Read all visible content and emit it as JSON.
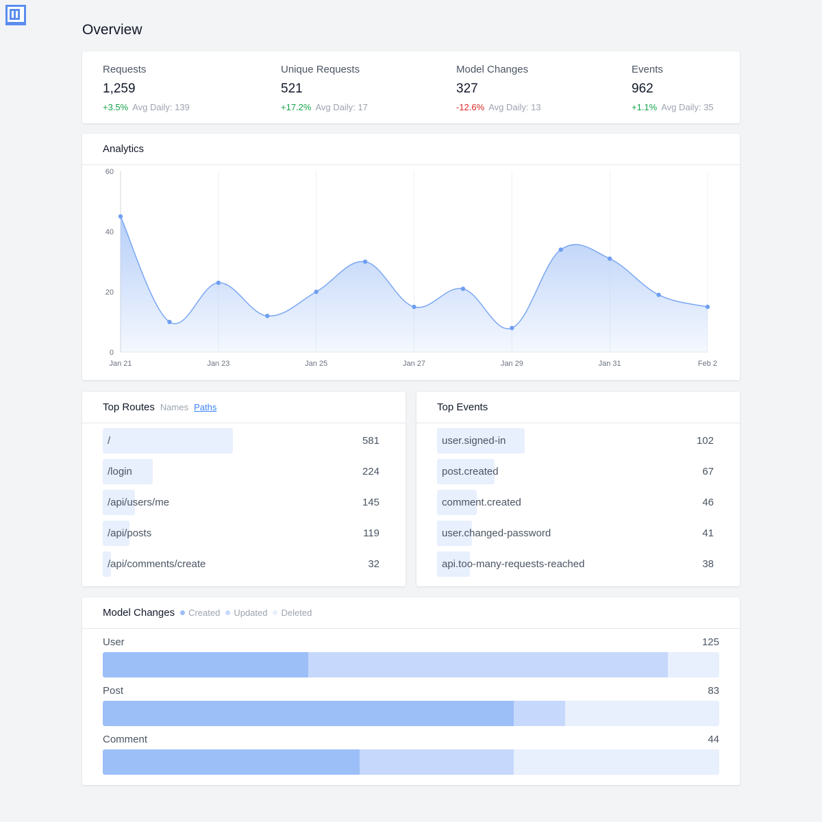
{
  "page": {
    "title": "Overview",
    "logo_icon": "lm-logo-icon"
  },
  "colors": {
    "positive": "#16a34a",
    "negative": "#dc2626",
    "accent": "#3b82f6",
    "created": "#9dbff8",
    "updated": "#c6d8fb",
    "deleted": "#e8effd"
  },
  "stats": [
    {
      "label": "Requests",
      "value": "1,259",
      "change": "+3.5%",
      "trend": "up",
      "avg": "Avg Daily: 139"
    },
    {
      "label": "Unique Requests",
      "value": "521",
      "change": "+17.2%",
      "trend": "up",
      "avg": "Avg Daily: 17"
    },
    {
      "label": "Model Changes",
      "value": "327",
      "change": "-12.6%",
      "trend": "down",
      "avg": "Avg Daily: 13"
    },
    {
      "label": "Events",
      "value": "962",
      "change": "+1.1%",
      "trend": "up",
      "avg": "Avg Daily: 35"
    }
  ],
  "analytics": {
    "title": "Analytics"
  },
  "chart_data": {
    "type": "area",
    "title": "",
    "xlabel": "",
    "ylabel": "",
    "x": [
      "Jan 21",
      "Jan 22",
      "Jan 23",
      "Jan 24",
      "Jan 25",
      "Jan 26",
      "Jan 27",
      "Jan 28",
      "Jan 29",
      "Jan 30",
      "Jan 31",
      "Feb 1",
      "Feb 2"
    ],
    "x_tick_labels": [
      "Jan 21",
      "Jan 23",
      "Jan 25",
      "Jan 27",
      "Jan 29",
      "Jan 31",
      "Feb 2"
    ],
    "values": [
      45,
      10,
      23,
      12,
      20,
      30,
      15,
      21,
      8,
      34,
      31,
      19,
      15
    ],
    "ylim": [
      0,
      60
    ],
    "y_ticks": [
      0,
      20,
      40,
      60
    ],
    "grid": "vertical",
    "color": "#7aa7f2"
  },
  "top_routes": {
    "title": "Top Routes",
    "toggles": [
      {
        "label": "Names",
        "active": false
      },
      {
        "label": "Paths",
        "active": true
      }
    ],
    "max": 581,
    "items": [
      {
        "label": "/",
        "value": 581
      },
      {
        "label": "/login",
        "value": 224
      },
      {
        "label": "/api/users/me",
        "value": 145
      },
      {
        "label": "/api/posts",
        "value": 119
      },
      {
        "label": "/api/comments/create",
        "value": 32
      }
    ]
  },
  "top_events": {
    "title": "Top Events",
    "max": 102,
    "items": [
      {
        "label": "user.signed-in",
        "value": 102
      },
      {
        "label": "post.created",
        "value": 67
      },
      {
        "label": "comment.created",
        "value": 46
      },
      {
        "label": "user.changed-password",
        "value": 41
      },
      {
        "label": "api.too-many-requests-reached",
        "value": 38
      }
    ]
  },
  "model_changes": {
    "title": "Model Changes",
    "legend": [
      "Created",
      "Updated",
      "Deleted"
    ],
    "rows": [
      {
        "label": "User",
        "total": 125,
        "created": 0.333,
        "updated": 0.584,
        "deleted": 0.083
      },
      {
        "label": "Post",
        "total": 83,
        "created": 0.667,
        "updated": 0.083,
        "deleted": 0.25
      },
      {
        "label": "Comment",
        "total": 44,
        "created": 0.417,
        "updated": 0.25,
        "deleted": 0.333
      }
    ]
  }
}
